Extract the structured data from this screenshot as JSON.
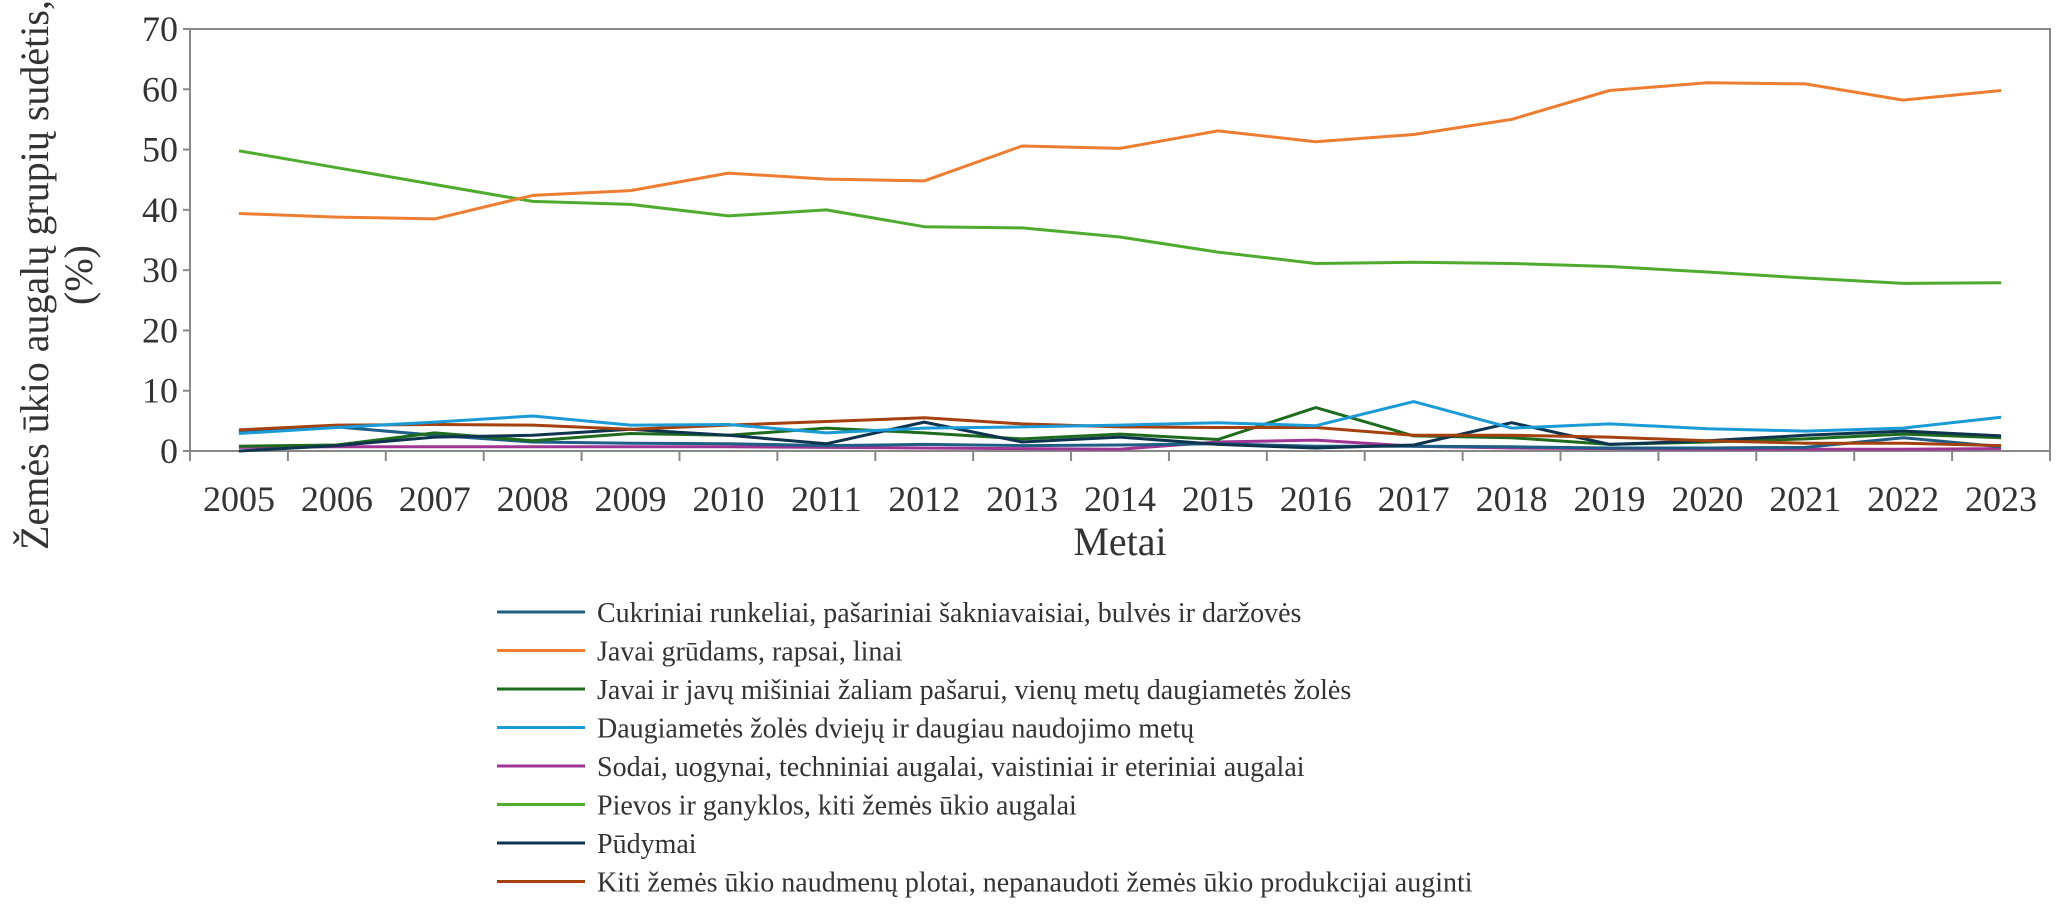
{
  "chart_data": {
    "type": "line",
    "title": "",
    "xlabel": "Metai",
    "ylabel": "Žemės ūkio augalų grupių sudėtis, (%)",
    "ylabel_lines": [
      "Žemės ūkio augalų grupių sudėtis,",
      "(%)"
    ],
    "ylim": [
      0,
      70
    ],
    "yticks": [
      0,
      10,
      20,
      30,
      40,
      50,
      60,
      70
    ],
    "grid": false,
    "legend_placement": "bottom",
    "x": [
      "2005",
      "2006",
      "2007",
      "2008",
      "2009",
      "2010",
      "2011",
      "2012",
      "2013",
      "2014",
      "2015",
      "2016",
      "2017",
      "2018",
      "2019",
      "2020",
      "2021",
      "2022",
      "2023"
    ],
    "series": [
      {
        "name": "Cukriniai runkeliai, pašariniai šakniavaisiai, bulvės ir daržovės",
        "color": "#1f5f86",
        "values": [
          3.3,
          4.0,
          2.6,
          1.5,
          1.3,
          1.2,
          0.9,
          1.1,
          0.9,
          1.0,
          1.2,
          0.8,
          0.8,
          0.7,
          0.5,
          0.5,
          0.6,
          2.2,
          0.7
        ]
      },
      {
        "name": "Javai grūdams, rapsai, linai",
        "color": "#ed7d31",
        "values": [
          39.4,
          38.8,
          38.5,
          42.4,
          43.2,
          46.1,
          45.1,
          44.8,
          50.6,
          50.2,
          53.1,
          51.3,
          52.5,
          55.0,
          59.8,
          61.1,
          60.9,
          58.2,
          59.8
        ]
      },
      {
        "name": "Javai ir javų mišiniai žaliam pašarui, vienų metų daugiametės žolės",
        "color": "#1e6b1e",
        "values": [
          0.8,
          1.0,
          3.0,
          1.7,
          2.9,
          2.6,
          3.8,
          3.0,
          2.0,
          2.8,
          1.9,
          7.2,
          2.5,
          2.2,
          1.1,
          1.5,
          2.0,
          2.8,
          2.2
        ]
      },
      {
        "name": "Daugiametės žolės dviejų ir daugiau naudojimo metų",
        "color": "#1a9ad6",
        "values": [
          2.9,
          3.9,
          4.8,
          5.8,
          4.3,
          4.4,
          3.0,
          3.8,
          4.0,
          4.3,
          4.7,
          4.2,
          8.2,
          3.8,
          4.5,
          3.7,
          3.3,
          3.8,
          5.6
        ]
      },
      {
        "name": "Sodai, uogynai, techniniai augalai, vaistiniai ir eteriniai augalai",
        "color": "#a03595",
        "values": [
          0.6,
          0.7,
          0.7,
          0.7,
          0.7,
          0.7,
          0.6,
          0.5,
          0.4,
          0.3,
          1.5,
          1.8,
          0.8,
          0.5,
          0.4,
          0.3,
          0.3,
          0.3,
          0.4
        ]
      },
      {
        "name": "Pievos ir ganyklos, kiti žemės ūkio augalai",
        "color": "#4eab2e",
        "values": [
          49.8,
          47.0,
          44.2,
          41.4,
          40.9,
          39.0,
          40.0,
          37.2,
          37.0,
          35.5,
          33.0,
          31.1,
          31.3,
          31.1,
          30.6,
          29.7,
          28.7,
          27.8,
          27.9
        ]
      },
      {
        "name": "Pūdymai",
        "color": "#0e3450",
        "values": [
          0.0,
          0.9,
          2.3,
          2.6,
          3.6,
          2.6,
          1.2,
          4.8,
          1.5,
          2.3,
          1.1,
          0.5,
          1.0,
          4.7,
          1.1,
          1.7,
          2.6,
          3.3,
          2.5
        ]
      },
      {
        "name": "Kiti žemės ūkio naudmenų plotai, nepanaudoti žemės ūkio produkcijai auginti",
        "color": "#a5400f",
        "values": [
          3.5,
          4.3,
          4.4,
          4.3,
          3.6,
          4.3,
          4.9,
          5.5,
          4.5,
          4.0,
          3.9,
          3.9,
          2.6,
          2.6,
          2.3,
          1.7,
          1.3,
          1.3,
          0.9
        ]
      }
    ]
  }
}
